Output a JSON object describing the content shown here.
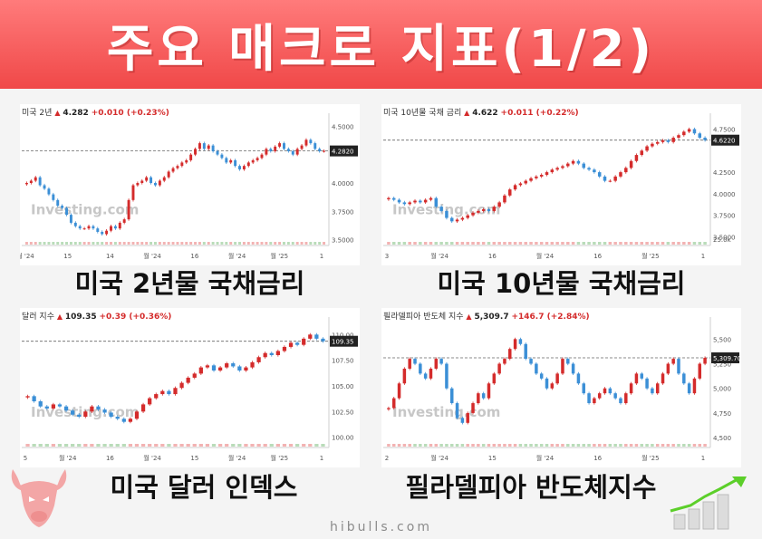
{
  "header": {
    "title": "주요 매크로 지표(1/2)"
  },
  "footer": {
    "watermark": "hibulls.com"
  },
  "brand": {
    "header_color": "#f04848",
    "up_color": "#d42b2b",
    "down_color": "#3b8fd6",
    "grid_color": "#d0d0d0"
  },
  "icons": {
    "logo": "bull-head-icon",
    "growth": "growth-chart-icon",
    "up": "up-arrow-icon"
  },
  "panels": [
    {
      "caption": "미국 2년물 국채금리",
      "instrument": "미국 2년",
      "last": "4.282",
      "change": "+0.010 (+0.23%)",
      "current_label": "4.2820",
      "y_ticks": [
        "4.5000",
        "4.2820",
        "4.0000",
        "3.7500",
        "3.5000"
      ],
      "x_ticks": [
        "월 '24",
        "15",
        "14",
        "월 '24",
        "16",
        "월 '24",
        "월 '25",
        "1"
      ],
      "logo_text": "Investing.com"
    },
    {
      "caption": "미국 10년물 국채금리",
      "instrument": "미국 10년물 국채 금리",
      "last": "4.622",
      "change": "+0.011 (+0.22%)",
      "current_label": "4.6220",
      "y_ticks": [
        "4.7500",
        "4.6220",
        "4.2500",
        "4.0000",
        "3.7500",
        "3.5000",
        "25.0k"
      ],
      "x_ticks": [
        "3",
        "월 '24",
        "16",
        "월 '24",
        "16",
        "월 '25",
        "1"
      ],
      "logo_text": "Investing.com"
    },
    {
      "caption": "미국 달러 인덱스",
      "instrument": "달러 지수",
      "last": "109.35",
      "change": "+0.39 (+0.36%)",
      "current_label": "109.35",
      "y_ticks": [
        "110.00",
        "107.50",
        "105.00",
        "102.50",
        "100.00"
      ],
      "x_ticks": [
        "5",
        "월 '24",
        "16",
        "월 '24",
        "15",
        "월 '24",
        "월 '25",
        "1"
      ],
      "logo_text": "Investing.com"
    },
    {
      "caption": "필라델피아 반도체지수",
      "instrument": "필라델피아 반도체 지수",
      "last": "5,309.7",
      "change": "+146.7 (+2.84%)",
      "current_label": "5,309.70",
      "y_ticks": [
        "5,500",
        "5,250",
        "5,000",
        "4,750",
        "4,500"
      ],
      "x_ticks": [
        "2",
        "월 '24",
        "15",
        "월 '24",
        "16",
        "월 '25",
        "1"
      ],
      "logo_text": "Investing.com"
    }
  ],
  "chart_data": [
    {
      "type": "candlestick",
      "title": "미국 2년",
      "ylim": [
        3.45,
        4.55
      ],
      "y_ticks": [
        4.5,
        4.0,
        3.75,
        3.5
      ],
      "current": 4.282,
      "close": [
        4.0,
        4.02,
        4.05,
        3.98,
        3.95,
        3.9,
        3.85,
        3.8,
        3.78,
        3.72,
        3.65,
        3.62,
        3.6,
        3.6,
        3.62,
        3.6,
        3.57,
        3.55,
        3.58,
        3.62,
        3.6,
        3.65,
        3.68,
        3.85,
        3.98,
        4.0,
        4.02,
        4.05,
        4.0,
        3.98,
        4.02,
        4.05,
        4.1,
        4.13,
        4.15,
        4.18,
        4.2,
        4.25,
        4.3,
        4.35,
        4.3,
        4.33,
        4.28,
        4.25,
        4.22,
        4.18,
        4.2,
        4.15,
        4.12,
        4.15,
        4.18,
        4.2,
        4.22,
        4.25,
        4.3,
        4.28,
        4.32,
        4.35,
        4.3,
        4.28,
        4.25,
        4.3,
        4.33,
        4.38,
        4.35,
        4.3,
        4.28,
        4.282
      ]
    },
    {
      "type": "candlestick",
      "title": "미국 10년물 국채 금리",
      "ylim": [
        3.4,
        4.85
      ],
      "y_ticks": [
        4.75,
        4.25,
        4.0,
        3.75,
        3.5
      ],
      "current": 4.622,
      "close": [
        3.95,
        3.93,
        3.9,
        3.88,
        3.9,
        3.92,
        3.9,
        3.93,
        3.95,
        3.85,
        3.8,
        3.72,
        3.68,
        3.7,
        3.72,
        3.75,
        3.78,
        3.8,
        3.82,
        3.8,
        3.85,
        3.9,
        3.98,
        4.05,
        4.1,
        4.12,
        4.15,
        4.18,
        4.2,
        4.22,
        4.25,
        4.28,
        4.3,
        4.32,
        4.35,
        4.38,
        4.35,
        4.3,
        4.28,
        4.25,
        4.2,
        4.15,
        4.15,
        4.2,
        4.25,
        4.3,
        4.38,
        4.45,
        4.5,
        4.55,
        4.58,
        4.6,
        4.62,
        4.6,
        4.65,
        4.68,
        4.72,
        4.75,
        4.7,
        4.65,
        4.622
      ]
    },
    {
      "type": "candlestick",
      "title": "달러 지수",
      "ylim": [
        99.0,
        111.0
      ],
      "y_ticks": [
        110.0,
        107.5,
        105.0,
        102.5,
        100.0
      ],
      "current": 109.35,
      "close": [
        104.0,
        103.5,
        103.0,
        102.8,
        103.2,
        103.0,
        102.6,
        102.2,
        102.0,
        102.5,
        103.0,
        102.7,
        102.4,
        102.0,
        101.8,
        101.5,
        101.8,
        102.5,
        103.2,
        103.8,
        104.2,
        104.5,
        104.2,
        104.8,
        105.3,
        105.8,
        106.2,
        106.8,
        107.0,
        106.5,
        106.8,
        107.2,
        106.9,
        106.5,
        106.8,
        107.3,
        107.8,
        108.2,
        108.0,
        108.4,
        108.8,
        109.2,
        109.0,
        109.6,
        110.0,
        109.6,
        109.35
      ]
    },
    {
      "type": "candlestick",
      "title": "필라델피아 반도체 지수",
      "ylim": [
        4400,
        5650
      ],
      "y_ticks": [
        5500,
        5250,
        5000,
        4750,
        4500
      ],
      "current": 5309.7,
      "close": [
        4800,
        4900,
        5050,
        5200,
        5300,
        5250,
        5150,
        5100,
        5200,
        5300,
        5250,
        5000,
        4850,
        4700,
        4650,
        4750,
        4850,
        4950,
        4900,
        5050,
        5150,
        5250,
        5300,
        5400,
        5500,
        5450,
        5300,
        5250,
        5150,
        5100,
        5000,
        5050,
        5150,
        5300,
        5250,
        5150,
        5050,
        4950,
        4850,
        4900,
        4950,
        5000,
        4950,
        4900,
        4850,
        4950,
        5050,
        5150,
        5100,
        5000,
        4950,
        5050,
        5150,
        5250,
        5300,
        5150,
        5050,
        4950,
        5100,
        5250,
        5309.7
      ]
    }
  ]
}
